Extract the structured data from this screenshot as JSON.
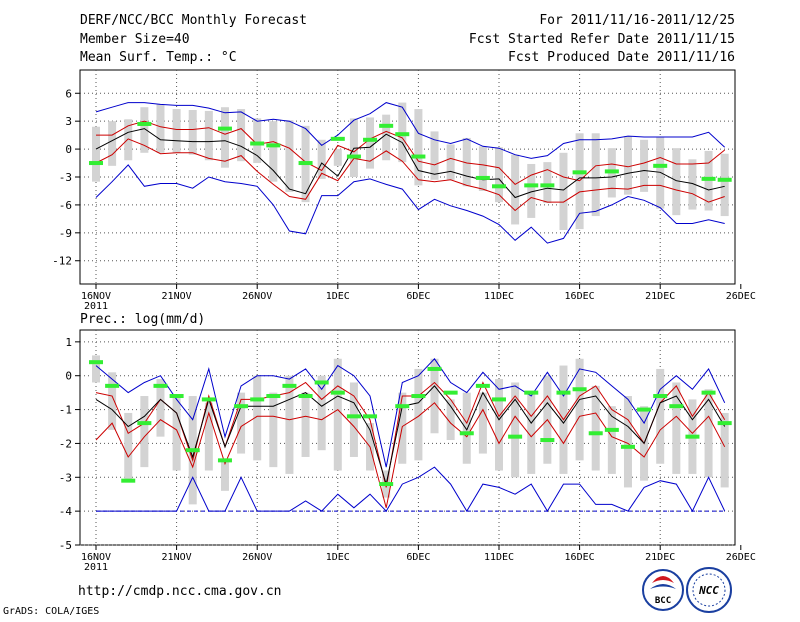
{
  "header": {
    "title": "DERF/NCC/BCC Monthly Forecast",
    "member_size": "Member Size=40",
    "variable_temp": "Mean Surf. Temp.: °C",
    "forecast_period": "For 2011/11/16-2011/12/25",
    "started_refer": "Fcst Started Refer Date 2011/11/15",
    "produced": "Fcst Produced Date 2011/11/16"
  },
  "footer": {
    "url": "http://cmdp.ncc.cma.gov.cn",
    "grads": "GrADS: COLA/IGES",
    "logo_bcc": "BCC",
    "logo_ncc": "NCC"
  },
  "colors": {
    "box": "#d3d3d3",
    "mean": "#000000",
    "range": "#0000cc",
    "interval": "#cc0000",
    "observed": "#33ee33",
    "grid": "#555555"
  },
  "chart_data": [
    {
      "type": "line",
      "name": "temperature",
      "ylabel": "Mean Surf. Temp.: °C",
      "ylim": [
        -14.5,
        8.5
      ],
      "yticks": [
        6,
        3,
        0,
        -3,
        -6,
        -9,
        -12
      ],
      "ytick_labels": [
        "6",
        "3",
        "0",
        "-3",
        "-6",
        "-9",
        "-12"
      ],
      "xlim": [
        -0.5,
        40
      ],
      "xticks": [
        0,
        5,
        10,
        15,
        20,
        25,
        30,
        35,
        40
      ],
      "xtick_labels": [
        "16NOV",
        "21NOV",
        "26NOV",
        "1DEC",
        "6DEC",
        "11DEC",
        "16DEC",
        "21DEC",
        "26DEC"
      ],
      "xtick_sublabel": "2011",
      "days": [
        0,
        1,
        2,
        3,
        4,
        5,
        6,
        7,
        8,
        9,
        10,
        11,
        12,
        13,
        14,
        15,
        16,
        17,
        18,
        19,
        20,
        21,
        22,
        23,
        24,
        25,
        26,
        27,
        28,
        29,
        30,
        31,
        32,
        33,
        34,
        35,
        36,
        37,
        38,
        39
      ],
      "box_top": [
        2.4,
        3,
        3.2,
        4.5,
        4.8,
        4.3,
        4.2,
        4.1,
        4.5,
        4.3,
        3.3,
        3,
        3.1,
        2.5,
        1,
        0,
        3.3,
        3.4,
        3.7,
        5,
        4.3,
        1.9,
        0.5,
        1.2,
        0.3,
        0.2,
        -0.6,
        -1.6,
        -1.4,
        -0.4,
        1.7,
        1.7,
        0.1,
        1.4,
        1,
        1.3,
        0.1,
        -1.1,
        -0.2,
        -0.5
      ],
      "box_bottom": [
        -3.5,
        -1.8,
        -1.2,
        -0.4,
        -0.4,
        -0.4,
        -0.6,
        -1.2,
        -2,
        -1.3,
        -1.5,
        -3.5,
        -4.6,
        -5.7,
        -3.2,
        -1.8,
        -3,
        -2.1,
        -1.2,
        -1.4,
        -3.9,
        -3.3,
        -3.3,
        -4,
        -4.5,
        -5.7,
        -8.1,
        -7.4,
        -5.8,
        -8.7,
        -8.6,
        -7.2,
        -5.2,
        -4.9,
        -4.6,
        -6.4,
        -7.1,
        -6.5,
        -6.6,
        -7.2
      ],
      "series": [
        {
          "name": "max",
          "values": [
            4,
            4.5,
            5,
            5,
            4.8,
            4.7,
            4.7,
            4.4,
            3.9,
            4,
            3,
            3.2,
            3,
            2.2,
            0.4,
            1.5,
            3.1,
            3.8,
            5,
            4.5,
            1.7,
            1,
            0.6,
            1.1,
            0.3,
            0.1,
            -0.6,
            -1,
            -0.7,
            0.6,
            1,
            1,
            1.1,
            1.4,
            1.3,
            1.3,
            1.3,
            1.3,
            1.8,
            0.2
          ]
        },
        {
          "name": "upper",
          "values": [
            1.5,
            1.5,
            2.5,
            3,
            2.4,
            2.1,
            2.1,
            2.3,
            1.6,
            2.2,
            0.5,
            0.8,
            0.1,
            -1.4,
            -2.3,
            0.4,
            -0.3,
            1.1,
            1.9,
            1.2,
            -1.3,
            -1.7,
            -1,
            -1.5,
            -1.7,
            -2,
            -3.8,
            -2.8,
            -2.2,
            -3,
            -3.4,
            -1.8,
            -1.6,
            -1.9,
            -1.5,
            -0.9,
            -1.6,
            -1.6,
            -1.5,
            -0.1
          ]
        },
        {
          "name": "mean",
          "values": [
            0,
            0.9,
            1.8,
            2.2,
            1,
            0.9,
            0.8,
            0.8,
            0.9,
            0.3,
            -0.7,
            -2.3,
            -4.3,
            -4.8,
            -1.5,
            -2.9,
            0.1,
            0.2,
            1.6,
            0.7,
            -2.3,
            -2.7,
            -2.4,
            -2.9,
            -3.3,
            -3.2,
            -5.2,
            -4.6,
            -4.2,
            -4.4,
            -3.1,
            -3.1,
            -3,
            -2.6,
            -2.3,
            -2.5,
            -3.4,
            -3.7,
            -4.4,
            -4
          ]
        },
        {
          "name": "lower",
          "values": [
            -1.5,
            -0.6,
            1.1,
            0.4,
            -0.5,
            -0.4,
            -0.4,
            -1,
            -1.3,
            -0.7,
            -2.4,
            -3.8,
            -5.1,
            -5.4,
            -2.6,
            -3.4,
            -1,
            -1.3,
            -0.2,
            -1.3,
            -3.3,
            -3.5,
            -3.3,
            -3.9,
            -4.3,
            -4.9,
            -6.6,
            -5.2,
            -5.7,
            -5.7,
            -4.6,
            -4.4,
            -4.2,
            -4.3,
            -3.9,
            -3.9,
            -4.4,
            -4.8,
            -5.7,
            -5.1
          ]
        },
        {
          "name": "min",
          "values": [
            -5.2,
            -3.5,
            -1.7,
            -4,
            -3.7,
            -3.7,
            -4.2,
            -3,
            -3.5,
            -3.7,
            -4,
            -6,
            -8.8,
            -9.1,
            -5,
            -5,
            -3.5,
            -3.2,
            -3.8,
            -4.3,
            -6.5,
            -5.4,
            -6.1,
            -6.6,
            -7.2,
            -8.1,
            -9.8,
            -8.4,
            -10.1,
            -9.6,
            -6.9,
            -6.7,
            -6,
            -5.1,
            -5.5,
            -6.3,
            -8,
            -8,
            -7.6,
            -8
          ]
        }
      ],
      "observed": [
        {
          "day": 0,
          "value": -1.5
        },
        {
          "day": 3,
          "value": 2.7
        },
        {
          "day": 8,
          "value": 2.2
        },
        {
          "day": 10,
          "value": 0.6
        },
        {
          "day": 11,
          "value": 0.4
        },
        {
          "day": 13,
          "value": -1.5
        },
        {
          "day": 15,
          "value": 1.1
        },
        {
          "day": 16,
          "value": -0.8
        },
        {
          "day": 17,
          "value": 1
        },
        {
          "day": 18,
          "value": 2.5
        },
        {
          "day": 19,
          "value": 1.6
        },
        {
          "day": 20,
          "value": -0.8
        },
        {
          "day": 24,
          "value": -3.1
        },
        {
          "day": 25,
          "value": -4
        },
        {
          "day": 27,
          "value": -3.9
        },
        {
          "day": 28,
          "value": -3.9
        },
        {
          "day": 30,
          "value": -2.5
        },
        {
          "day": 32,
          "value": -2.4
        },
        {
          "day": 35,
          "value": -1.8
        },
        {
          "day": 38,
          "value": -3.2
        },
        {
          "day": 39,
          "value": -3.3
        }
      ]
    },
    {
      "type": "line",
      "name": "precipitation",
      "ylabel": "Prec.: log(mm/d)",
      "ylim": [
        -5,
        1.35
      ],
      "yticks": [
        1,
        0,
        -1,
        -2,
        -3,
        -4,
        -5
      ],
      "ytick_labels": [
        "1",
        "0",
        "-1",
        "-2",
        "-3",
        "-4",
        "-5"
      ],
      "xlim": [
        -0.5,
        40
      ],
      "xticks": [
        0,
        5,
        10,
        15,
        20,
        25,
        30,
        35,
        40
      ],
      "xtick_labels": [
        "16NOV",
        "21NOV",
        "26NOV",
        "1DEC",
        "6DEC",
        "11DEC",
        "16DEC",
        "21DEC",
        "26DEC"
      ],
      "xtick_sublabel": "2011",
      "days": [
        0,
        1,
        2,
        3,
        4,
        5,
        6,
        7,
        8,
        9,
        10,
        11,
        12,
        13,
        14,
        15,
        16,
        17,
        18,
        19,
        20,
        21,
        22,
        23,
        24,
        25,
        26,
        27,
        28,
        29,
        30,
        31,
        32,
        33,
        34,
        35,
        36,
        37,
        38,
        39
      ],
      "box_top": [
        0.6,
        0.1,
        -1.1,
        -0.6,
        -0.1,
        -0.6,
        -0.6,
        -0.8,
        -2.5,
        -0.5,
        0,
        -0.5,
        0,
        -0.5,
        0,
        0.5,
        -0.2,
        -1.4,
        -2.8,
        -0.5,
        0.2,
        0.5,
        -0.7,
        -0.5,
        -0.5,
        -0.1,
        -0.2,
        -0.5,
        0,
        0.3,
        0.5,
        -0.3,
        -0.9,
        -0.6,
        -0.9,
        0.2,
        -0.2,
        -0.7,
        -0.4,
        -1.1
      ],
      "box_bottom": [
        -0.2,
        -1.6,
        -3.1,
        -2.7,
        -1.8,
        -2.8,
        -3.8,
        -2.8,
        -3.4,
        -2.3,
        -2.5,
        -2.7,
        -2.9,
        -2.4,
        -2.2,
        -2.8,
        -2.4,
        -2.8,
        -3.6,
        -2.6,
        -2.5,
        -1.7,
        -1.9,
        -2.6,
        -2.3,
        -2.8,
        -3,
        -2.9,
        -2.6,
        -2.9,
        -2.5,
        -2.8,
        -2.9,
        -3.3,
        -3.1,
        -2.6,
        -2.9,
        -2.9,
        -3,
        -3.3
      ],
      "series": [
        {
          "name": "max",
          "values": [
            0.3,
            -0.1,
            -0.5,
            -0.2,
            0,
            -0.7,
            -1.3,
            0.2,
            -1.8,
            -0.3,
            0,
            0,
            -0.1,
            0.2,
            -0.4,
            0.3,
            0,
            -0.6,
            -2.7,
            -0.2,
            0,
            0.5,
            -0.2,
            -0.5,
            0.1,
            -0.4,
            -0.3,
            -0.6,
            0.1,
            -0.6,
            0.2,
            0.1,
            -0.3,
            -0.7,
            -1.4,
            -0.4,
            0,
            -0.4,
            0.2,
            -0.8
          ]
        },
        {
          "name": "upper",
          "values": [
            -0.5,
            -0.6,
            -1.7,
            -1.4,
            -0.7,
            -1.1,
            -2.5,
            -0.6,
            -2.1,
            -0.7,
            -0.7,
            -0.6,
            -0.5,
            -0.2,
            -0.7,
            -0.3,
            -0.6,
            -1.3,
            -3.3,
            -0.6,
            -0.6,
            -0.2,
            -0.7,
            -1.4,
            -0.2,
            -1.2,
            -0.6,
            -1.2,
            -0.6,
            -1.3,
            -0.6,
            -0.3,
            -1,
            -1.3,
            -2,
            -0.8,
            -0.3,
            -1.2,
            -0.5,
            -1.3
          ]
        },
        {
          "name": "mean",
          "values": [
            -0.7,
            -1,
            -1.5,
            -1.2,
            -0.7,
            -1.1,
            -2.4,
            -0.7,
            -2.1,
            -0.9,
            -0.9,
            -0.9,
            -0.7,
            -0.5,
            -0.9,
            -0.6,
            -0.8,
            -1.6,
            -3.2,
            -0.9,
            -0.8,
            -0.3,
            -0.9,
            -1.6,
            -0.5,
            -1.3,
            -0.7,
            -1.4,
            -0.8,
            -1.4,
            -0.7,
            -0.6,
            -1.2,
            -1.5,
            -2,
            -0.8,
            -0.6,
            -1.3,
            -0.7,
            -1.5
          ]
        },
        {
          "name": "lower",
          "values": [
            -1.9,
            -1.4,
            -2.4,
            -1.8,
            -1.3,
            -1.6,
            -2.7,
            -1.1,
            -2.6,
            -1.5,
            -1.2,
            -1.2,
            -1.3,
            -1.2,
            -1.3,
            -1.0,
            -1.5,
            -2.1,
            -3.9,
            -1.5,
            -1.2,
            -0.8,
            -1.4,
            -1.8,
            -1.0,
            -2,
            -1.2,
            -1.8,
            -1.3,
            -2,
            -1.2,
            -1.1,
            -1.8,
            -2,
            -2.4,
            -1.6,
            -1.2,
            -1.7,
            -1.2,
            -2.1
          ]
        },
        {
          "name": "min",
          "values": [
            -4,
            -4,
            -4,
            -4,
            -4,
            -4,
            -3,
            -4,
            -4,
            -3,
            -4,
            -4,
            -4,
            -3.7,
            -4,
            -3.5,
            -3.9,
            -3.5,
            -4,
            -3.2,
            -3,
            -2.7,
            -3.2,
            -4,
            -3.2,
            -3.3,
            -3.5,
            -3.2,
            -4,
            -3.2,
            -3.2,
            -3.8,
            -3.8,
            -4,
            -3.3,
            -3.1,
            -3.2,
            -4,
            -3,
            -4
          ]
        },
        {
          "name": "floor",
          "values": [
            -4,
            -4,
            -4,
            -4,
            -4,
            -4,
            -4,
            -4,
            -4,
            -4,
            -4,
            -4,
            -4,
            -4,
            -4,
            -4,
            -4,
            -4,
            -4,
            -4,
            -4,
            -4,
            -4,
            -4,
            -4,
            -4,
            -4,
            -4,
            -4,
            -4,
            -4,
            -4,
            -4,
            -4,
            -4,
            -4,
            -4,
            -4,
            -4,
            -4
          ]
        }
      ],
      "observed": [
        {
          "day": 0,
          "value": 0.4
        },
        {
          "day": 1,
          "value": -0.3
        },
        {
          "day": 2,
          "value": -3.1
        },
        {
          "day": 3,
          "value": -1.4
        },
        {
          "day": 4,
          "value": -0.3
        },
        {
          "day": 5,
          "value": -0.6
        },
        {
          "day": 6,
          "value": -2.2
        },
        {
          "day": 7,
          "value": -0.7
        },
        {
          "day": 8,
          "value": -2.5
        },
        {
          "day": 9,
          "value": -0.9
        },
        {
          "day": 10,
          "value": -0.7
        },
        {
          "day": 11,
          "value": -0.6
        },
        {
          "day": 12,
          "value": -0.3
        },
        {
          "day": 13,
          "value": -0.6
        },
        {
          "day": 14,
          "value": -0.2
        },
        {
          "day": 15,
          "value": -0.5
        },
        {
          "day": 16,
          "value": -1.2
        },
        {
          "day": 17,
          "value": -1.2
        },
        {
          "day": 18,
          "value": -3.2
        },
        {
          "day": 19,
          "value": -0.9
        },
        {
          "day": 20,
          "value": -0.6
        },
        {
          "day": 21,
          "value": 0.2
        },
        {
          "day": 22,
          "value": -0.5
        },
        {
          "day": 23,
          "value": -1.7
        },
        {
          "day": 24,
          "value": -0.3
        },
        {
          "day": 25,
          "value": -0.7
        },
        {
          "day": 26,
          "value": -1.8
        },
        {
          "day": 27,
          "value": -0.5
        },
        {
          "day": 28,
          "value": -1.9
        },
        {
          "day": 29,
          "value": -0.5
        },
        {
          "day": 30,
          "value": -0.4
        },
        {
          "day": 31,
          "value": -1.7
        },
        {
          "day": 32,
          "value": -1.6
        },
        {
          "day": 33,
          "value": -2.1
        },
        {
          "day": 34,
          "value": -1.0
        },
        {
          "day": 35,
          "value": -0.6
        },
        {
          "day": 36,
          "value": -0.9
        },
        {
          "day": 37,
          "value": -1.8
        },
        {
          "day": 38,
          "value": -0.5
        },
        {
          "day": 39,
          "value": -1.4
        }
      ]
    }
  ]
}
